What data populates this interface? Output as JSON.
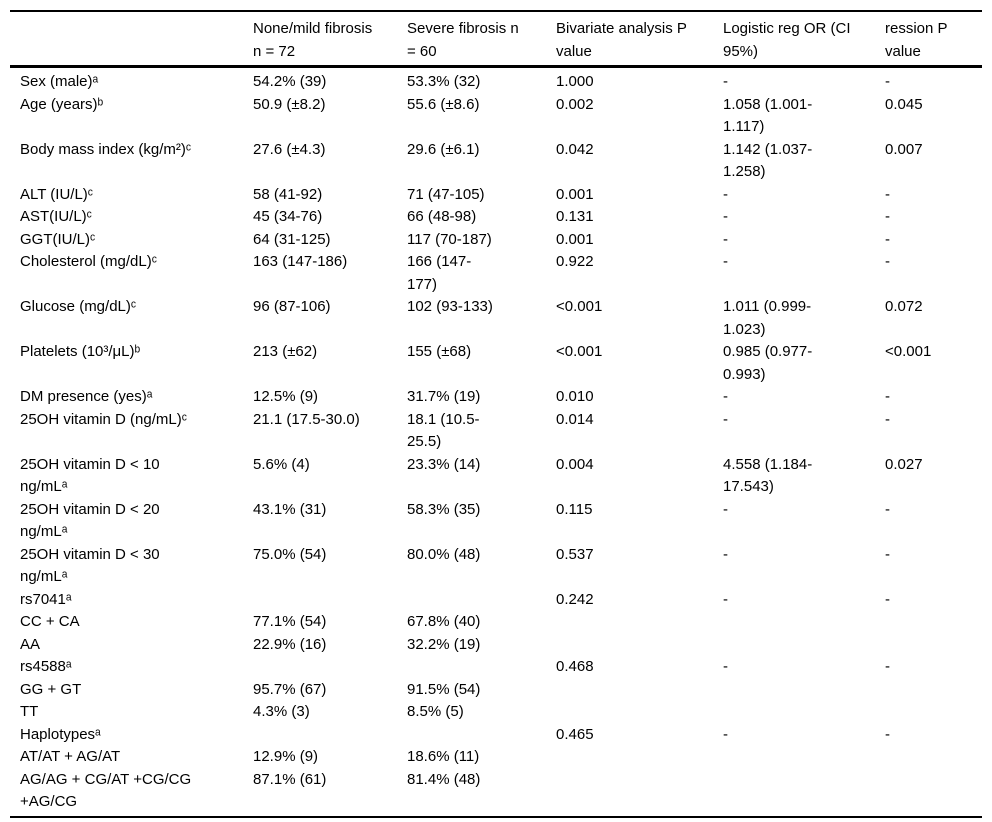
{
  "table": {
    "headers": [
      "",
      "None/mild fibrosis\nn = 72",
      "Severe fibrosis n\n= 60",
      "Bivariate analysis P\nvalue",
      "Logistic reg OR (CI\n95%)",
      "ression P\nvalue"
    ],
    "rows": [
      [
        "Sex (male)ᵃ",
        "54.2% (39)",
        "53.3% (32)",
        "1.000",
        "-",
        "-"
      ],
      [
        "Age (years)ᵇ",
        "50.9 (±8.2)",
        "55.6 (±8.6)",
        "0.002",
        "1.058 (1.001-\n1.117)",
        "0.045"
      ],
      [
        "Body mass index (kg/m²)ᶜ",
        "27.6 (±4.3)",
        "29.6 (±6.1)",
        "0.042",
        "1.142 (1.037-\n1.258)",
        "0.007"
      ],
      [
        "ALT (IU/L)ᶜ",
        "58 (41-92)",
        "71 (47-105)",
        "0.001",
        "-",
        "-"
      ],
      [
        "AST(IU/L)ᶜ",
        "45 (34-76)",
        "66 (48-98)",
        "0.131",
        "-",
        "-"
      ],
      [
        "GGT(IU/L)ᶜ",
        "64 (31-125)",
        "117 (70-187)",
        "0.001",
        "-",
        "-"
      ],
      [
        "Cholesterol (mg/dL)ᶜ",
        "163 (147-186)",
        "166 (147-\n177)",
        "0.922",
        "-",
        "-"
      ],
      [
        "Glucose (mg/dL)ᶜ",
        "96 (87-106)",
        "102 (93-133)",
        "<0.001",
        "1.011 (0.999-\n1.023)",
        "0.072"
      ],
      [
        "Platelets (10³/μL)ᵇ",
        "213 (±62)",
        "155 (±68)",
        "<0.001",
        "0.985 (0.977-\n0.993)",
        "<0.001"
      ],
      [
        "DM presence (yes)ᵃ",
        "12.5% (9)",
        "31.7% (19)",
        "0.010",
        "-",
        "-"
      ],
      [
        "25OH vitamin D (ng/mL)ᶜ",
        "21.1 (17.5-30.0)",
        "18.1 (10.5-\n25.5)",
        "0.014",
        "-",
        "-"
      ],
      [
        "25OH vitamin D < 10\nng/mLᵃ",
        "5.6% (4)",
        "23.3% (14)",
        "0.004",
        "4.558 (1.184-\n17.543)",
        "0.027"
      ],
      [
        "25OH vitamin D < 20\nng/mLᵃ",
        "43.1% (31)",
        "58.3% (35)",
        "0.115",
        "-",
        "-"
      ],
      [
        "25OH vitamin D < 30\nng/mLᵃ",
        "75.0% (54)",
        "80.0% (48)",
        "0.537",
        "-",
        "-"
      ],
      [
        "rs7041ᵃ",
        "",
        "",
        "0.242",
        "-",
        "-"
      ],
      [
        "CC + CA",
        "77.1% (54)",
        "67.8% (40)",
        "",
        "",
        ""
      ],
      [
        "AA",
        "22.9% (16)",
        "32.2% (19)",
        "",
        "",
        ""
      ],
      [
        "rs4588ᵃ",
        "",
        "",
        "0.468",
        "-",
        "-"
      ],
      [
        "GG + GT",
        "95.7% (67)",
        "91.5% (54)",
        "",
        "",
        ""
      ],
      [
        "TT",
        "4.3% (3)",
        "8.5% (5)",
        "",
        "",
        ""
      ],
      [
        "Haplotypesᵃ",
        "",
        "",
        "0.465",
        "-",
        "-"
      ],
      [
        "AT/AT + AG/AT",
        "12.9% (9)",
        "18.6% (11)",
        "",
        "",
        ""
      ],
      [
        "AG/AG + CG/AT +CG/CG\n+AG/CG",
        "87.1% (61)",
        "81.4% (48)",
        "",
        "",
        ""
      ]
    ]
  }
}
